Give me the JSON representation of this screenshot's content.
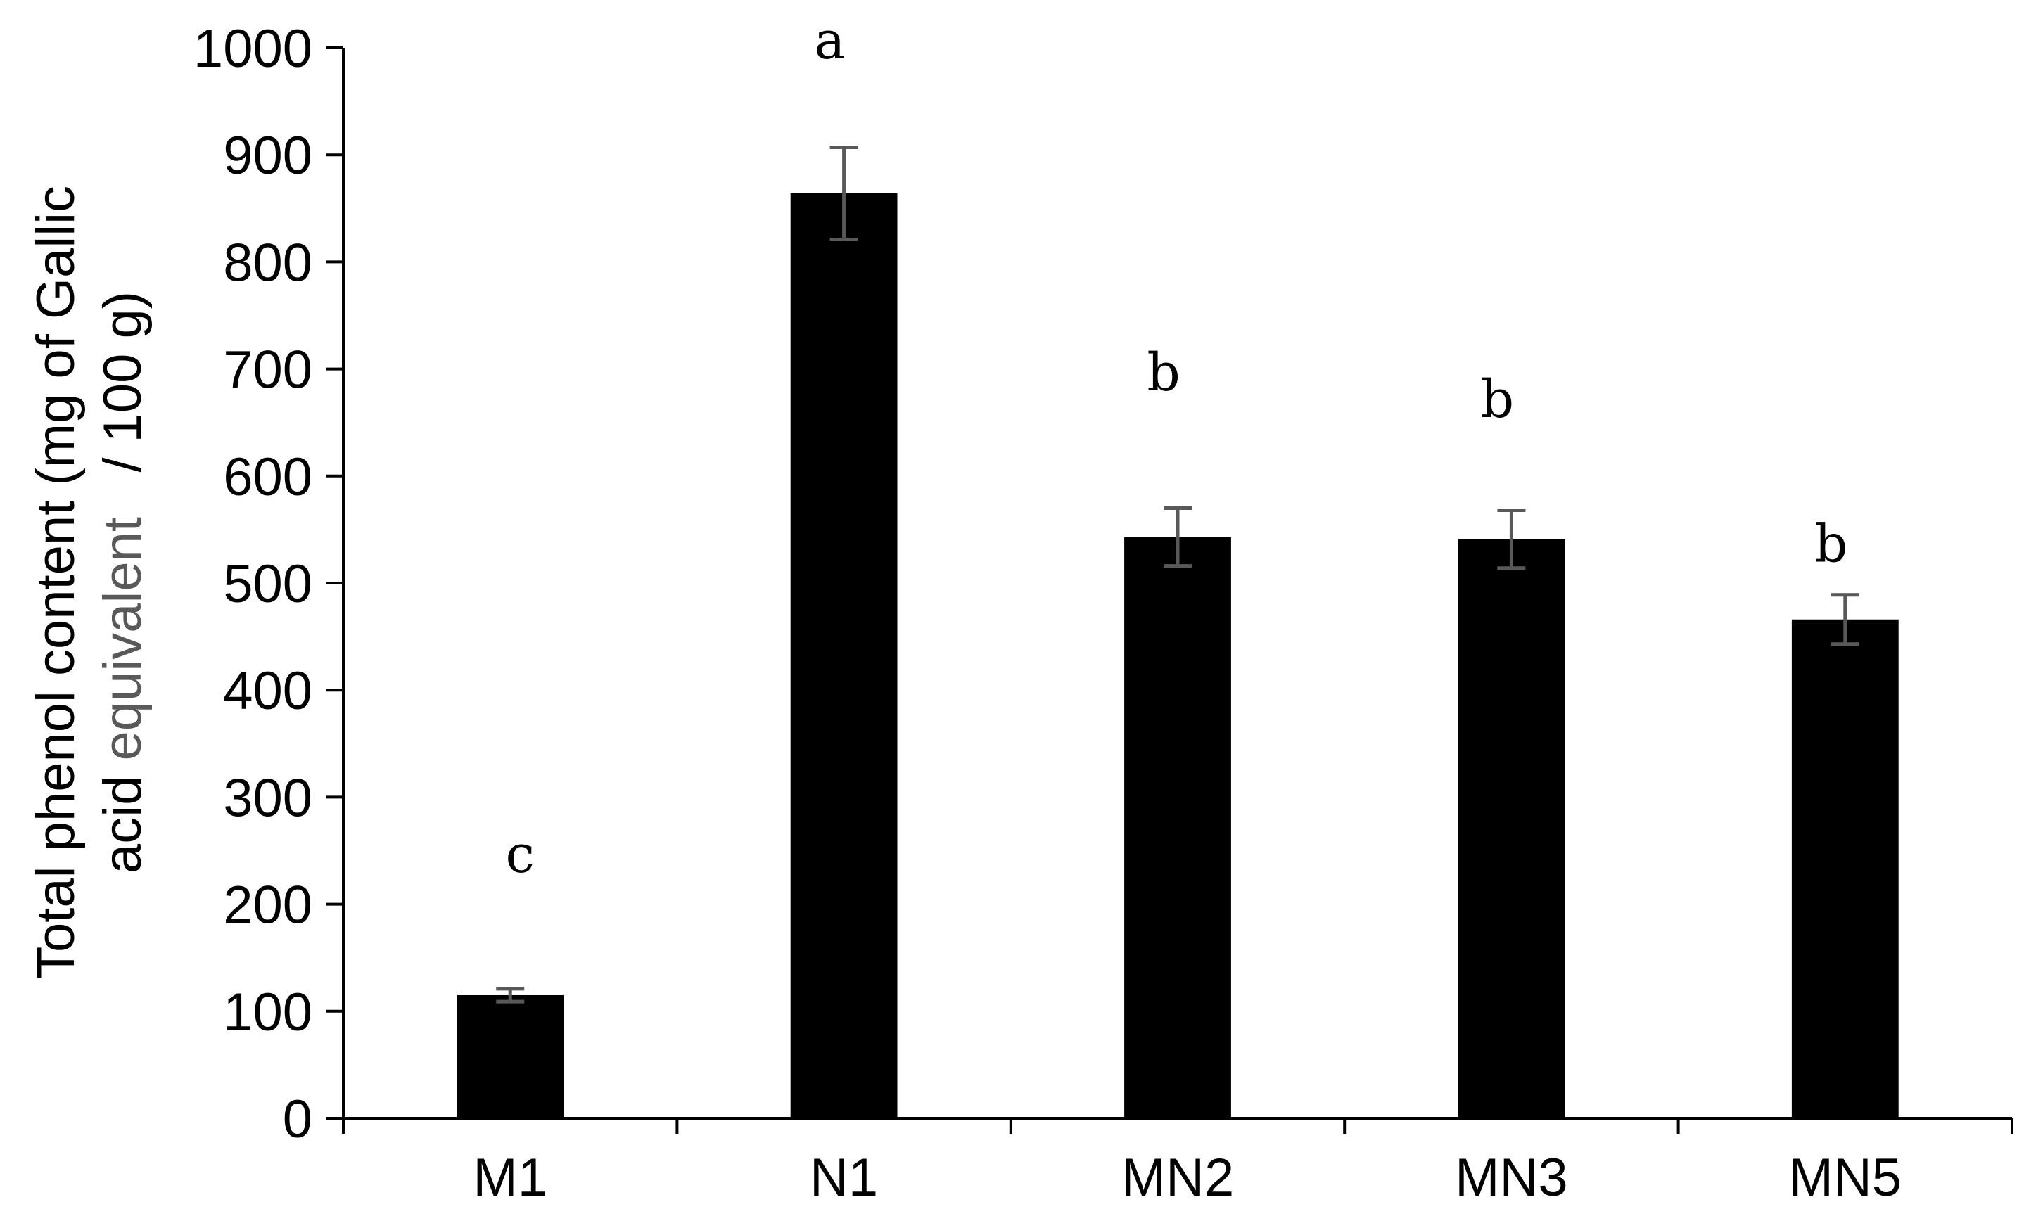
{
  "chart_data": {
    "type": "bar",
    "title": "",
    "xlabel": "",
    "ylabel_line1": "Total phenol content (mg of Gallic",
    "ylabel_line2_part1": "acid ",
    "ylabel_line2_part2": "equivalent",
    "ylabel_line2_part3": "   / 100 g)",
    "ylim": [
      0,
      1000
    ],
    "ytick_step": 100,
    "yticks": [
      "0",
      "100",
      "200",
      "300",
      "400",
      "500",
      "600",
      "700",
      "800",
      "900",
      "1000"
    ],
    "categories": [
      "M1",
      "N1",
      "MN2",
      "MN3",
      "MN5"
    ],
    "values": [
      115,
      864,
      543,
      541,
      466
    ],
    "errors": [
      6,
      43,
      27,
      27,
      23
    ],
    "significance_letters": [
      "c",
      "a",
      "b",
      "b",
      "b"
    ],
    "significance_y": [
      230,
      990,
      680,
      655,
      520
    ],
    "grid": false,
    "bar_color": "#000000",
    "errorbar_color": "#595959",
    "axis_color": "#000000"
  }
}
